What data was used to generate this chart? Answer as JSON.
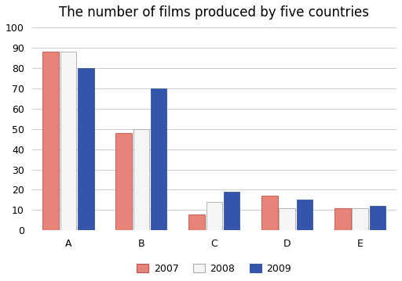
{
  "title": "The number of films produced by five countries",
  "categories": [
    "A",
    "B",
    "C",
    "D",
    "E"
  ],
  "years": [
    "2007",
    "2008",
    "2009"
  ],
  "values": {
    "2007": [
      88,
      48,
      8,
      17,
      11
    ],
    "2008": [
      88,
      50,
      14,
      11,
      11
    ],
    "2009": [
      80,
      70,
      19,
      15,
      12
    ]
  },
  "colors": {
    "2007": "#E8837A",
    "2008": "#F5F5F5",
    "2009": "#3355AA"
  },
  "bar_edge_colors": {
    "2007": "#C0504D",
    "2008": "#AAAAAA",
    "2009": "#3355AA"
  },
  "ylim": [
    0,
    100
  ],
  "yticks": [
    0,
    10,
    20,
    30,
    40,
    50,
    60,
    70,
    80,
    90,
    100
  ],
  "background_color": "#FFFFFF",
  "grid_color": "#CCCCCC",
  "title_fontsize": 12,
  "legend_fontsize": 9,
  "tick_fontsize": 9,
  "bar_width": 0.22,
  "bar_gap": 0.02
}
